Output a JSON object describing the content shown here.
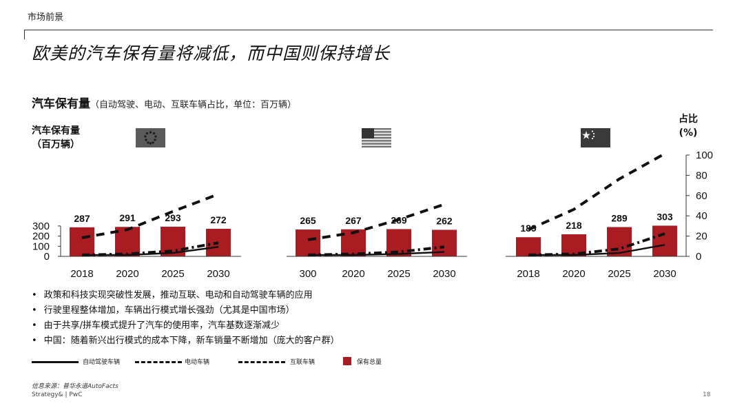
{
  "header": {
    "section_label": "市场前景",
    "title": "欧美的汽车保有量将减低，而中国则保持增长"
  },
  "subtitle": {
    "main": "汽车保有量",
    "note": "（自动驾驶、电动、互联车辆占比，单位：百万辆）"
  },
  "y_axis_title": [
    "汽车保有量",
    "（百万辆）"
  ],
  "share_axis_title": [
    "占比",
    "(%)"
  ],
  "colors": {
    "bar": "#a91c22",
    "line": "#111111"
  },
  "chart_data": [
    {
      "type": "bar",
      "region_icon": "eu-flag-icon",
      "categories": [
        "2018",
        "2020",
        "2025",
        "2030"
      ],
      "values": [
        287,
        291,
        293,
        272
      ],
      "ylim": [
        0,
        300
      ],
      "yticks": [
        0,
        100,
        200,
        300
      ],
      "series_share": {
        "autonomous": [
          0,
          0,
          2,
          8
        ],
        "electric": [
          0,
          1,
          4,
          12
        ],
        "connected": [
          17,
          25,
          43,
          60
        ]
      }
    },
    {
      "type": "bar",
      "region_icon": "us-flag-icon",
      "categories": [
        "300",
        "2020",
        "2025",
        "2030"
      ],
      "values": [
        265,
        267,
        269,
        262
      ],
      "ylim": [
        0,
        300
      ],
      "series_share": {
        "autonomous": [
          0,
          0,
          1,
          3
        ],
        "electric": [
          0,
          1,
          3,
          8
        ],
        "connected": [
          15,
          22,
          35,
          50
        ]
      }
    },
    {
      "type": "bar",
      "region_icon": "china-flag-icon",
      "categories": [
        "2018",
        "2020",
        "2025",
        "2030"
      ],
      "values": [
        189,
        218,
        289,
        303
      ],
      "ylim": [
        0,
        360
      ],
      "share_ylim": [
        0,
        100
      ],
      "share_ticks": [
        0,
        20,
        40,
        60,
        80,
        100
      ],
      "series_share": {
        "autonomous": [
          0,
          0,
          2,
          10
        ],
        "electric": [
          0,
          1,
          6,
          21
        ],
        "connected": [
          25,
          45,
          75,
          100
        ]
      }
    }
  ],
  "bullets": [
    "政策和科技实现突破性发展，推动互联、电动和自动驾驶车辆的应用",
    "行驶里程整体增加，车辆出行模式增长强劲（尤其是中国市场）",
    "由于共享/拼车模式提升了汽车的使用率，汽车基数逐渐减少",
    "中国：随着新兴出行模式的成本下降，新车销量不断增加（庞大的客户群）"
  ],
  "legend": {
    "autonomous": "自动驾驶车辆",
    "electric": "电动车辆",
    "connected": "互联车辆",
    "total": "保有总量"
  },
  "source": "信息来源：普华永道AutoFacts",
  "footer": "Strategy& | PwC",
  "page_number": "18"
}
